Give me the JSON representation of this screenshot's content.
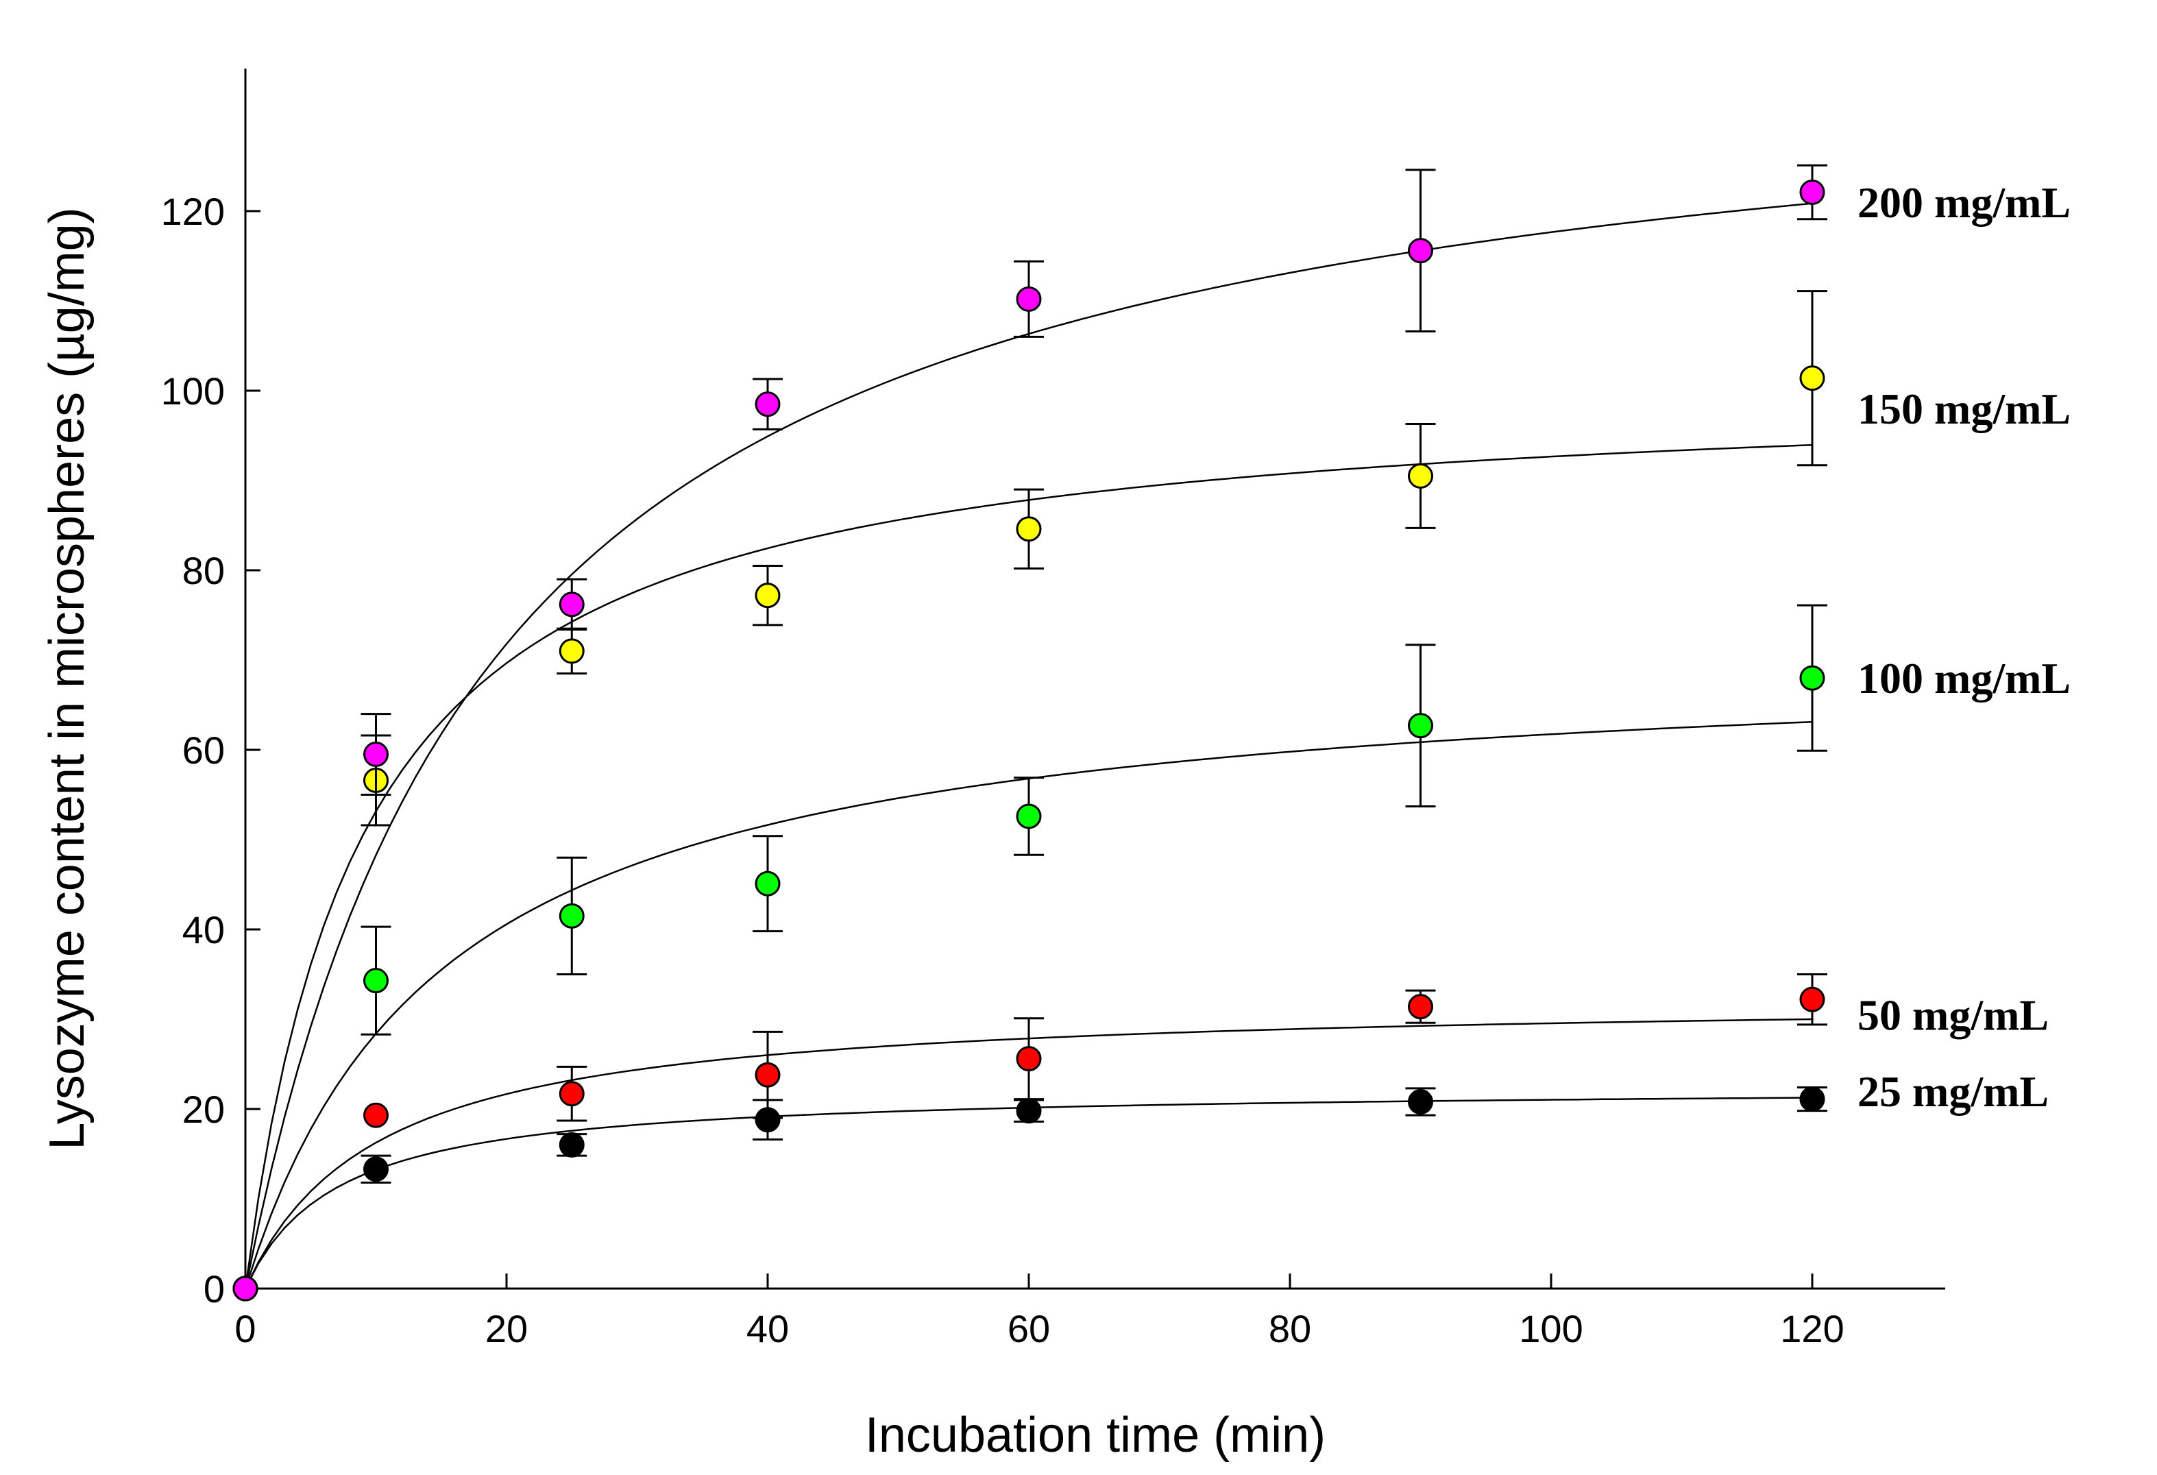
{
  "chart_data": {
    "type": "scatter",
    "title": "",
    "xlabel": "Incubation time (min)",
    "ylabel": "Lysozyme content in microspheres (µg/mg)",
    "xlim": [
      0,
      130
    ],
    "ylim": [
      0,
      135
    ],
    "xticks": [
      0,
      20,
      40,
      60,
      80,
      100,
      120
    ],
    "yticks": [
      0,
      20,
      40,
      60,
      80,
      100,
      120
    ],
    "grid": false,
    "legend": "inline-right",
    "series": [
      {
        "name": "25 mg/mL",
        "label": "25 mg/mL",
        "color": "#000000",
        "label_y": 22,
        "x": [
          0,
          10,
          25,
          40,
          60,
          90,
          120
        ],
        "y": [
          0,
          13.3,
          16.0,
          18.8,
          19.8,
          20.8,
          21.1
        ],
        "err": [
          0,
          1.5,
          1.2,
          2.2,
          1.2,
          1.5,
          1.3
        ],
        "fit": {
          "ymax": 22.5,
          "k": 7
        }
      },
      {
        "name": "50 mg/mL",
        "label": "50 mg/mL",
        "color": "#ff0000",
        "label_y": 30.5,
        "x": [
          0,
          10,
          25,
          40,
          60,
          90,
          120
        ],
        "y": [
          0,
          19.3,
          21.7,
          23.8,
          25.6,
          31.4,
          32.2
        ],
        "err": [
          0,
          0,
          3.0,
          4.8,
          4.5,
          1.8,
          2.8
        ],
        "fit": {
          "ymax": 32.5,
          "k": 10
        }
      },
      {
        "name": "100 mg/mL",
        "label": "100 mg/mL",
        "color": "#00ff00",
        "label_y": 68,
        "x": [
          0,
          10,
          25,
          40,
          60,
          90,
          120
        ],
        "y": [
          0,
          34.3,
          41.5,
          45.1,
          52.6,
          62.7,
          68.0
        ],
        "err": [
          0,
          6.0,
          6.5,
          5.3,
          4.3,
          9.0,
          8.1
        ],
        "fit": {
          "ymax": 71,
          "k": 15
        }
      },
      {
        "name": "150 mg/mL",
        "label": "150 mg/mL",
        "color": "#ffff00",
        "label_y": 98,
        "x": [
          0,
          10,
          25,
          40,
          60,
          90,
          120
        ],
        "y": [
          0,
          56.6,
          71.0,
          77.2,
          84.6,
          90.5,
          101.4
        ],
        "err": [
          0,
          5.0,
          2.5,
          3.3,
          4.4,
          5.8,
          9.7
        ],
        "fit": {
          "ymax": 101,
          "k": 9
        }
      },
      {
        "name": "200 mg/mL",
        "label": "200 mg/mL",
        "color": "#ff00ff",
        "label_y": 121,
        "x": [
          0,
          10,
          25,
          40,
          60,
          90,
          120
        ],
        "y": [
          0,
          59.5,
          76.2,
          98.5,
          110.2,
          115.6,
          122.1
        ],
        "err": [
          0,
          4.5,
          2.8,
          2.8,
          4.2,
          9.0,
          3.0
        ],
        "fit": {
          "ymax": 140,
          "k": 19
        }
      }
    ]
  }
}
